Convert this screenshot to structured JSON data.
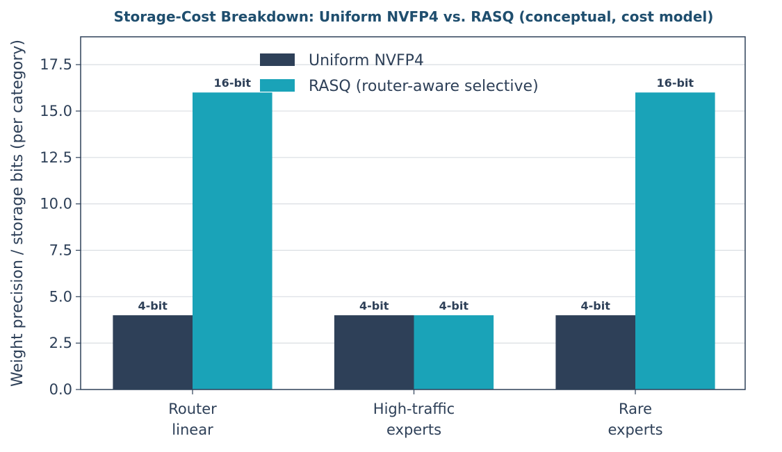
{
  "chart_data": {
    "type": "bar",
    "title": "Storage-Cost Breakdown: Uniform NVFP4 vs. RASQ  (conceptual, cost model)",
    "xlabel": "",
    "ylabel": "Weight precision / storage bits (per category)",
    "categories": [
      [
        "Router",
        "linear"
      ],
      [
        "High-traffic",
        "experts"
      ],
      [
        "Rare",
        "experts"
      ]
    ],
    "series": [
      {
        "name": "Uniform NVFP4",
        "color": "#2e4058",
        "values": [
          4,
          4,
          4
        ],
        "labels": [
          "4-bit",
          "4-bit",
          "4-bit"
        ]
      },
      {
        "name": "RASQ (router-aware selective)",
        "color": "#1aa3b8",
        "values": [
          16,
          4,
          16
        ],
        "labels": [
          "16-bit",
          "4-bit",
          "16-bit"
        ]
      }
    ],
    "ylim": [
      0,
      19
    ],
    "yticks": [
      0.0,
      2.5,
      5.0,
      7.5,
      10.0,
      12.5,
      15.0,
      17.5
    ],
    "ytick_labels": [
      "0.0",
      "2.5",
      "5.0",
      "7.5",
      "10.0",
      "12.5",
      "15.0",
      "17.5"
    ],
    "grid": "horizontal",
    "legend": "upper-center"
  }
}
